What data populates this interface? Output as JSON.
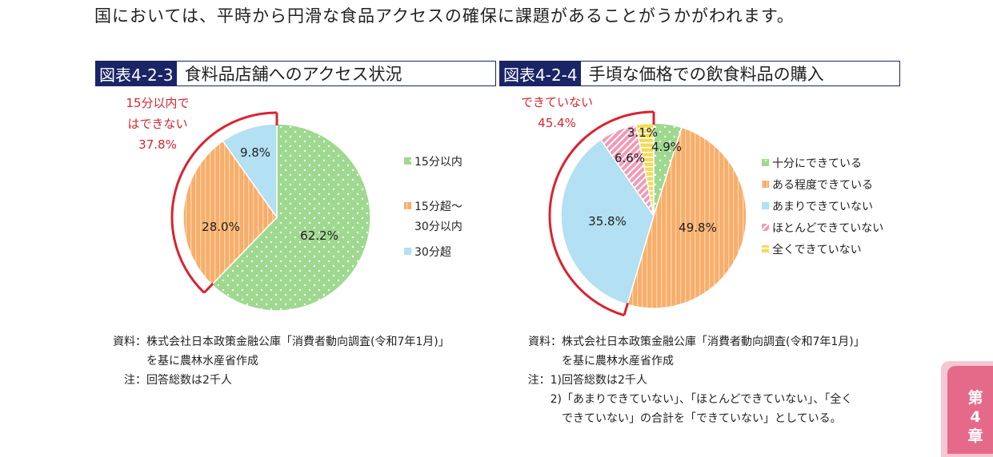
{
  "intro_text": "国においては、平時から円滑な食品アクセスの確保に課題があることがうかがわれます。",
  "colors": {
    "green": "#9ed98f",
    "orange": "#f8ae6a",
    "lightblue": "#b3e0f2",
    "pink": "#f29ab5",
    "yellow": "#f4dc5a",
    "bracket": "#d9242f",
    "title_navy": "#1a2466",
    "tab_pink": "#e56a8a"
  },
  "figures": [
    {
      "number": "図表4-2-3",
      "title": "食料品店舗へのアクセス状況",
      "callout_lines": [
        "15分以内で",
        "はできない",
        "37.8%"
      ],
      "notes": [
        {
          "label": "資料：",
          "text": "株式会社日本政策金融公庫「消費者動向調査(令和7年1月)」"
        },
        {
          "label": "",
          "text": "を基に農林水産省作成"
        },
        {
          "label": "注：",
          "text": "回答総数は2千人"
        }
      ]
    },
    {
      "number": "図表4-2-4",
      "title": "手頃な価格での飲食料品の購入",
      "callout_lines": [
        "できていない",
        "45.4%"
      ],
      "notes": [
        {
          "label": "資料：",
          "text": "株式会社日本政策金融公庫「消費者動向調査(令和7年1月)」"
        },
        {
          "label": "",
          "text": "を基に農林水産省作成"
        },
        {
          "label": "注：1)",
          "text": "回答総数は2千人"
        },
        {
          "label": "2)",
          "text": "「あまりできていない」、「ほとんどできていない」、「全く"
        },
        {
          "label": "",
          "text": "できていない」の合計を「できていない」としている。"
        }
      ]
    }
  ],
  "chart_data": [
    {
      "type": "pie",
      "categories": [
        "15分以内",
        "15分超～30分以内",
        "30分超"
      ],
      "values": [
        62.2,
        28.0,
        9.8
      ],
      "data_labels": [
        "62.2%",
        "28.0%",
        "9.8%"
      ],
      "legend": [
        [
          "15分以内"
        ],
        [
          "15分超～",
          "30分以内"
        ],
        [
          "30分超"
        ]
      ],
      "legend_position": "right"
    },
    {
      "type": "pie",
      "categories": [
        "十分にできている",
        "ある程度できている",
        "あまりできていない",
        "ほとんどできていない",
        "全くできていない"
      ],
      "values": [
        4.9,
        49.8,
        35.8,
        6.6,
        3.1
      ],
      "data_labels": [
        "4.9%",
        "49.8%",
        "35.8%",
        "6.6%",
        "3.1%"
      ],
      "legend": [
        [
          "十分にできている"
        ],
        [
          "ある程度できている"
        ],
        [
          "あまりできていない"
        ],
        [
          "ほとんどできていない"
        ],
        [
          "全くできていない"
        ]
      ],
      "legend_position": "right"
    }
  ],
  "chapter_tab": {
    "line1": "第",
    "line2": "4",
    "line3": "章"
  }
}
